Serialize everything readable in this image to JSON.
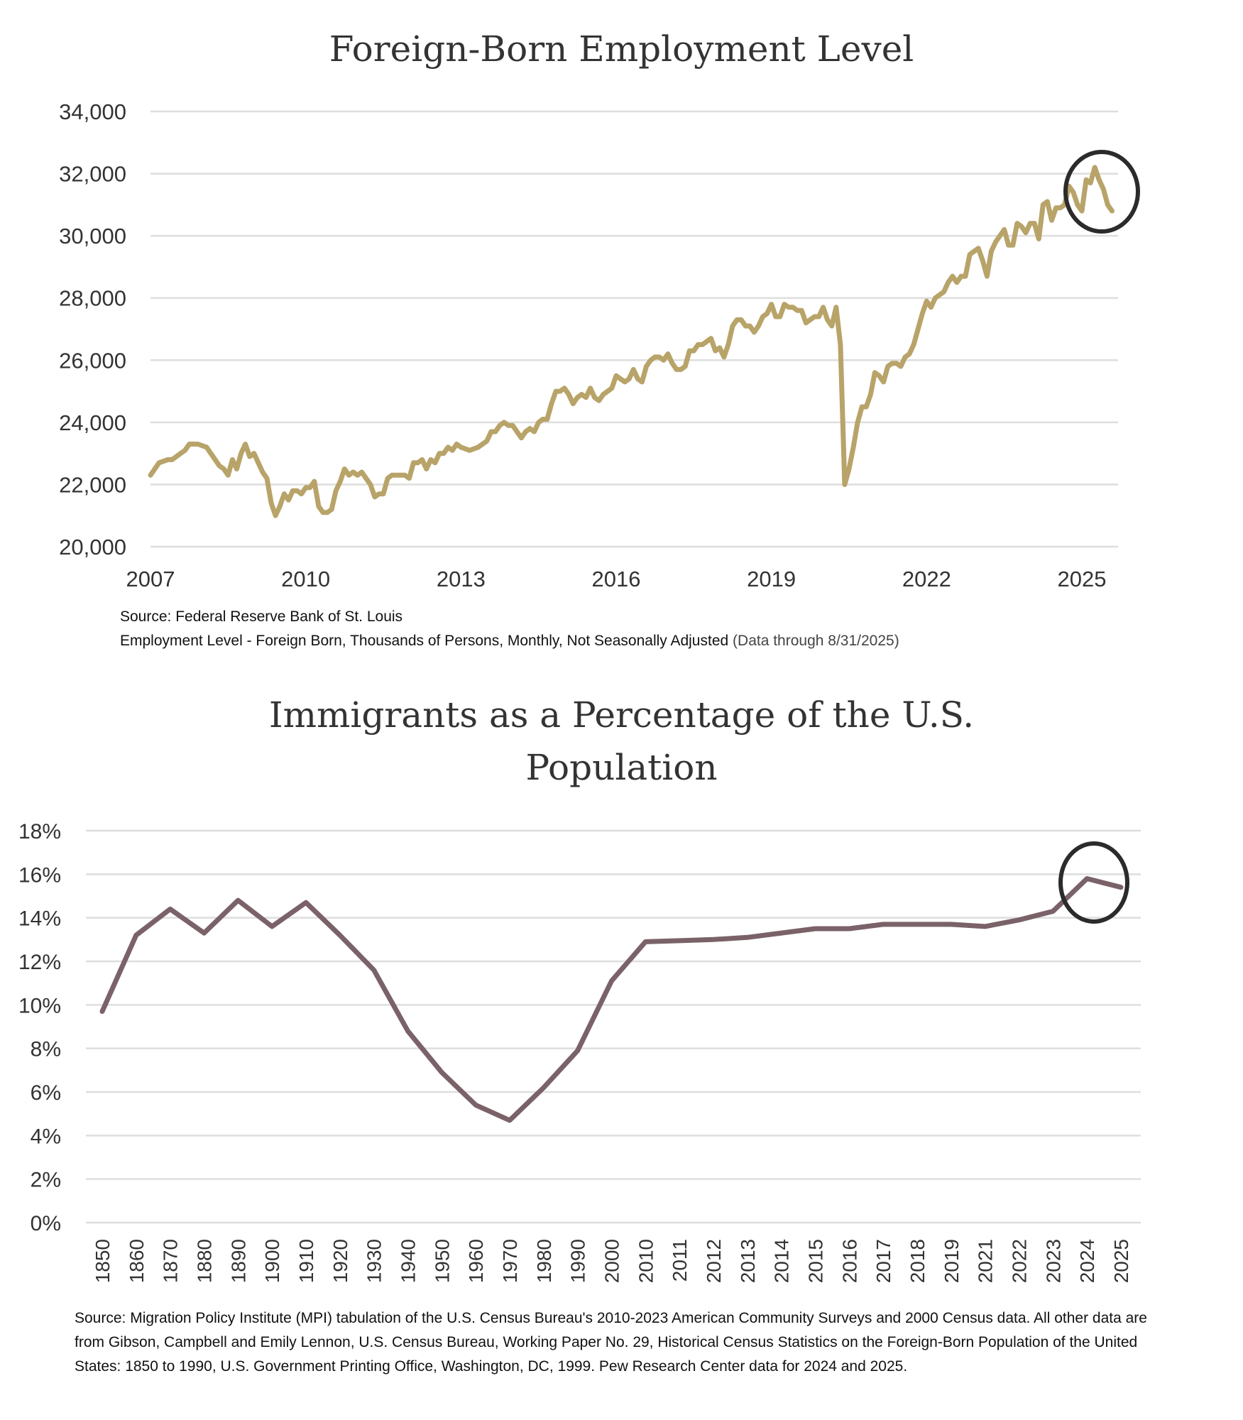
{
  "chart_data": [
    {
      "type": "line",
      "title": "Foreign-Born Employment Level",
      "ylim": [
        20000,
        34000
      ],
      "yticks": [
        "20,000",
        "22,000",
        "24,000",
        "26,000",
        "28,000",
        "30,000",
        "32,000",
        "34,000"
      ],
      "ytick_values": [
        20000,
        22000,
        24000,
        26000,
        28000,
        30000,
        32000,
        34000
      ],
      "xlim": [
        "2007-01",
        "2025-08"
      ],
      "xticks": [
        "2007",
        "2010",
        "2013",
        "2016",
        "2019",
        "2022",
        "2025"
      ],
      "grid": true,
      "color": "#b8a369",
      "highlight_circle": "recent decline 2025",
      "source_line1": "Source: Federal Reserve Bank of St. Louis",
      "source_line2": "Employment Level - Foreign Born, Thousands of Persons, Monthly, Not Seasonally Adjusted",
      "source_note": "(Data through 8/31/2025)",
      "points": [
        [
          "2007-01",
          22300
        ],
        [
          "2007-03",
          22700
        ],
        [
          "2007-05",
          22800
        ],
        [
          "2007-06",
          22800
        ],
        [
          "2007-08",
          23000
        ],
        [
          "2007-09",
          23100
        ],
        [
          "2007-10",
          23300
        ],
        [
          "2007-12",
          23300
        ],
        [
          "2008-02",
          23200
        ],
        [
          "2008-03",
          23000
        ],
        [
          "2008-05",
          22600
        ],
        [
          "2008-06",
          22500
        ],
        [
          "2008-07",
          22300
        ],
        [
          "2008-08",
          22800
        ],
        [
          "2008-09",
          22500
        ],
        [
          "2008-10",
          23000
        ],
        [
          "2008-11",
          23300
        ],
        [
          "2008-12",
          22900
        ],
        [
          "2009-01",
          23000
        ],
        [
          "2009-03",
          22400
        ],
        [
          "2009-04",
          22200
        ],
        [
          "2009-05",
          21400
        ],
        [
          "2009-06",
          21000
        ],
        [
          "2009-07",
          21300
        ],
        [
          "2009-08",
          21700
        ],
        [
          "2009-09",
          21500
        ],
        [
          "2009-10",
          21800
        ],
        [
          "2009-11",
          21800
        ],
        [
          "2009-12",
          21700
        ],
        [
          "2010-01",
          21900
        ],
        [
          "2010-02",
          21900
        ],
        [
          "2010-03",
          22100
        ],
        [
          "2010-04",
          21300
        ],
        [
          "2010-05",
          21100
        ],
        [
          "2010-06",
          21100
        ],
        [
          "2010-07",
          21200
        ],
        [
          "2010-08",
          21800
        ],
        [
          "2010-09",
          22100
        ],
        [
          "2010-10",
          22500
        ],
        [
          "2010-11",
          22300
        ],
        [
          "2010-12",
          22400
        ],
        [
          "2011-01",
          22300
        ],
        [
          "2011-02",
          22400
        ],
        [
          "2011-03",
          22200
        ],
        [
          "2011-04",
          22000
        ],
        [
          "2011-05",
          21600
        ],
        [
          "2011-06",
          21700
        ],
        [
          "2011-07",
          21700
        ],
        [
          "2011-08",
          22200
        ],
        [
          "2011-09",
          22300
        ],
        [
          "2011-10",
          22300
        ],
        [
          "2011-11",
          22300
        ],
        [
          "2011-12",
          22300
        ],
        [
          "2012-01",
          22200
        ],
        [
          "2012-02",
          22700
        ],
        [
          "2012-03",
          22700
        ],
        [
          "2012-04",
          22800
        ],
        [
          "2012-05",
          22500
        ],
        [
          "2012-06",
          22800
        ],
        [
          "2012-07",
          22700
        ],
        [
          "2012-08",
          23000
        ],
        [
          "2012-09",
          23000
        ],
        [
          "2012-10",
          23200
        ],
        [
          "2012-11",
          23100
        ],
        [
          "2012-12",
          23300
        ],
        [
          "2013-01",
          23200
        ],
        [
          "2013-03",
          23100
        ],
        [
          "2013-05",
          23200
        ],
        [
          "2013-07",
          23400
        ],
        [
          "2013-08",
          23700
        ],
        [
          "2013-09",
          23700
        ],
        [
          "2013-10",
          23900
        ],
        [
          "2013-11",
          24000
        ],
        [
          "2013-12",
          23900
        ],
        [
          "2014-01",
          23900
        ],
        [
          "2014-03",
          23500
        ],
        [
          "2014-04",
          23700
        ],
        [
          "2014-05",
          23800
        ],
        [
          "2014-06",
          23700
        ],
        [
          "2014-07",
          24000
        ],
        [
          "2014-08",
          24100
        ],
        [
          "2014-09",
          24100
        ],
        [
          "2014-10",
          24600
        ],
        [
          "2014-11",
          25000
        ],
        [
          "2014-12",
          25000
        ],
        [
          "2015-01",
          25100
        ],
        [
          "2015-02",
          24900
        ],
        [
          "2015-03",
          24600
        ],
        [
          "2015-04",
          24800
        ],
        [
          "2015-05",
          24900
        ],
        [
          "2015-06",
          24800
        ],
        [
          "2015-07",
          25100
        ],
        [
          "2015-08",
          24800
        ],
        [
          "2015-09",
          24700
        ],
        [
          "2015-10",
          24900
        ],
        [
          "2015-11",
          25000
        ],
        [
          "2015-12",
          25100
        ],
        [
          "2016-01",
          25500
        ],
        [
          "2016-02",
          25400
        ],
        [
          "2016-03",
          25300
        ],
        [
          "2016-04",
          25400
        ],
        [
          "2016-05",
          25700
        ],
        [
          "2016-06",
          25400
        ],
        [
          "2016-07",
          25300
        ],
        [
          "2016-08",
          25800
        ],
        [
          "2016-09",
          26000
        ],
        [
          "2016-10",
          26100
        ],
        [
          "2016-11",
          26100
        ],
        [
          "2016-12",
          26000
        ],
        [
          "2017-01",
          26200
        ],
        [
          "2017-02",
          25900
        ],
        [
          "2017-03",
          25700
        ],
        [
          "2017-04",
          25700
        ],
        [
          "2017-05",
          25800
        ],
        [
          "2017-06",
          26300
        ],
        [
          "2017-07",
          26300
        ],
        [
          "2017-08",
          26500
        ],
        [
          "2017-09",
          26500
        ],
        [
          "2017-10",
          26600
        ],
        [
          "2017-11",
          26700
        ],
        [
          "2017-12",
          26300
        ],
        [
          "2018-01",
          26400
        ],
        [
          "2018-02",
          26100
        ],
        [
          "2018-03",
          26500
        ],
        [
          "2018-04",
          27100
        ],
        [
          "2018-05",
          27300
        ],
        [
          "2018-06",
          27300
        ],
        [
          "2018-07",
          27100
        ],
        [
          "2018-08",
          27100
        ],
        [
          "2018-09",
          26900
        ],
        [
          "2018-10",
          27100
        ],
        [
          "2018-11",
          27400
        ],
        [
          "2018-12",
          27500
        ],
        [
          "2019-01",
          27800
        ],
        [
          "2019-02",
          27400
        ],
        [
          "2019-03",
          27400
        ],
        [
          "2019-04",
          27800
        ],
        [
          "2019-05",
          27700
        ],
        [
          "2019-06",
          27700
        ],
        [
          "2019-07",
          27600
        ],
        [
          "2019-08",
          27600
        ],
        [
          "2019-09",
          27200
        ],
        [
          "2019-10",
          27300
        ],
        [
          "2019-11",
          27400
        ],
        [
          "2019-12",
          27400
        ],
        [
          "2020-01",
          27700
        ],
        [
          "2020-02",
          27300
        ],
        [
          "2020-03",
          27100
        ],
        [
          "2020-04",
          27700
        ],
        [
          "2020-05",
          26500
        ],
        [
          "2020-06",
          22000
        ],
        [
          "2020-07",
          22500
        ],
        [
          "2020-08",
          23200
        ],
        [
          "2020-09",
          24000
        ],
        [
          "2020-10",
          24500
        ],
        [
          "2020-11",
          24500
        ],
        [
          "2020-12",
          24900
        ],
        [
          "2021-01",
          25600
        ],
        [
          "2021-02",
          25500
        ],
        [
          "2021-03",
          25300
        ],
        [
          "2021-04",
          25800
        ],
        [
          "2021-05",
          25900
        ],
        [
          "2021-06",
          25900
        ],
        [
          "2021-07",
          25800
        ],
        [
          "2021-08",
          26100
        ],
        [
          "2021-09",
          26200
        ],
        [
          "2021-10",
          26500
        ],
        [
          "2021-11",
          27000
        ],
        [
          "2021-12",
          27500
        ],
        [
          "2022-01",
          27900
        ],
        [
          "2022-02",
          27700
        ],
        [
          "2022-03",
          28000
        ],
        [
          "2022-04",
          28100
        ],
        [
          "2022-05",
          28200
        ],
        [
          "2022-06",
          28500
        ],
        [
          "2022-07",
          28700
        ],
        [
          "2022-08",
          28500
        ],
        [
          "2022-09",
          28700
        ],
        [
          "2022-10",
          28700
        ],
        [
          "2022-11",
          29400
        ],
        [
          "2022-12",
          29500
        ],
        [
          "2023-01",
          29600
        ],
        [
          "2023-02",
          29200
        ],
        [
          "2023-03",
          28700
        ],
        [
          "2023-04",
          29500
        ],
        [
          "2023-05",
          29800
        ],
        [
          "2023-06",
          30000
        ],
        [
          "2023-07",
          30200
        ],
        [
          "2023-08",
          29700
        ],
        [
          "2023-09",
          29700
        ],
        [
          "2023-10",
          30400
        ],
        [
          "2023-11",
          30300
        ],
        [
          "2023-12",
          30100
        ],
        [
          "2024-01",
          30400
        ],
        [
          "2024-02",
          30400
        ],
        [
          "2024-03",
          29900
        ],
        [
          "2024-04",
          31000
        ],
        [
          "2024-05",
          31100
        ],
        [
          "2024-06",
          30500
        ],
        [
          "2024-07",
          30900
        ],
        [
          "2024-08",
          30900
        ],
        [
          "2024-09",
          31000
        ],
        [
          "2024-10",
          31600
        ],
        [
          "2024-11",
          31400
        ],
        [
          "2024-12",
          31000
        ],
        [
          "2025-01",
          30800
        ],
        [
          "2025-02",
          31800
        ],
        [
          "2025-03",
          31700
        ],
        [
          "2025-04",
          32200
        ],
        [
          "2025-05",
          31800
        ],
        [
          "2025-06",
          31500
        ],
        [
          "2025-07",
          31000
        ],
        [
          "2025-08",
          30800
        ]
      ]
    },
    {
      "type": "line",
      "title_line1": "Immigrants as a Percentage of the U.S.",
      "title_line2": "Population",
      "ylim": [
        0,
        18
      ],
      "yticks": [
        "0%",
        "2%",
        "4%",
        "6%",
        "8%",
        "10%",
        "12%",
        "14%",
        "16%",
        "18%"
      ],
      "ytick_values": [
        0,
        2,
        4,
        6,
        8,
        10,
        12,
        14,
        16,
        18
      ],
      "grid": true,
      "color": "#7a6268",
      "highlight_circle": "2024-2025",
      "categories": [
        "1850",
        "1860",
        "1870",
        "1880",
        "1890",
        "1900",
        "1910",
        "1920",
        "1930",
        "1940",
        "1950",
        "1960",
        "1970",
        "1980",
        "1990",
        "2000",
        "2010",
        "2011",
        "2012",
        "2013",
        "2014",
        "2015",
        "2016",
        "2017",
        "2018",
        "2019",
        "2021",
        "2022",
        "2023",
        "2024",
        "2025"
      ],
      "values": [
        9.7,
        13.2,
        14.4,
        13.3,
        14.8,
        13.6,
        14.7,
        13.2,
        11.6,
        8.8,
        6.9,
        5.4,
        4.7,
        6.2,
        7.9,
        11.1,
        12.9,
        12.95,
        13.0,
        13.1,
        13.3,
        13.5,
        13.5,
        13.7,
        13.7,
        13.7,
        13.6,
        13.9,
        14.3,
        15.8,
        15.4
      ],
      "source": "Source: Migration Policy Institute (MPI) tabulation of the U.S. Census Bureau's 2010-2023 American Community Surveys and 2000 Census data. All other data are from Gibson, Campbell and Emily Lennon, U.S. Census Bureau, Working Paper No. 29, Historical Census Statistics on the Foreign-Born Population of the United States: 1850 to 1990, U.S. Government Printing Office, Washington, DC, 1999. Pew Research Center data for 2024 and 2025."
    }
  ]
}
